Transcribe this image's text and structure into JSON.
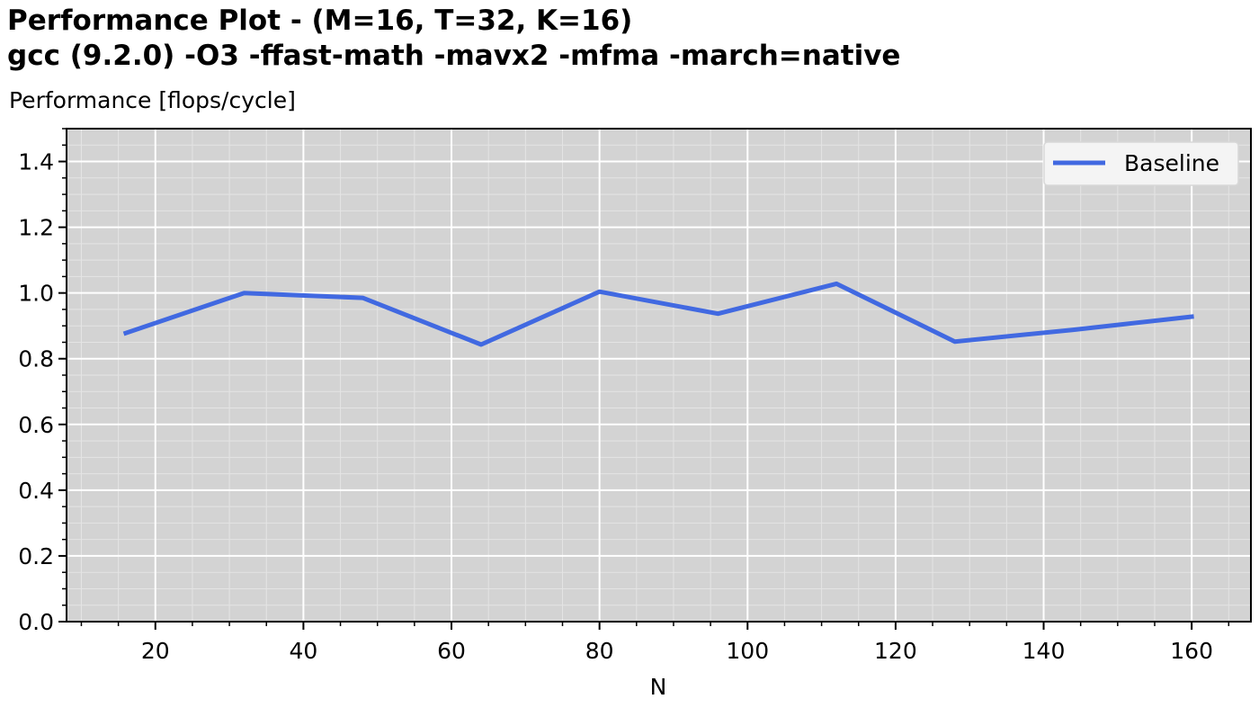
{
  "chart_data": {
    "type": "line",
    "title_lines": [
      "Performance Plot  -  (M=16, T=32, K=16)",
      "gcc (9.2.0) -O3 -ffast-math -mavx2 -mfma -march=native"
    ],
    "ylabel": "Performance [flops/cycle]",
    "xlabel": "N",
    "xlim": [
      8,
      168
    ],
    "ylim": [
      0,
      1.5
    ],
    "x_ticks": [
      20,
      40,
      60,
      80,
      100,
      120,
      140,
      160
    ],
    "x_tick_labels": [
      "20",
      "40",
      "60",
      "80",
      "100",
      "120",
      "140",
      "160"
    ],
    "y_ticks": [
      0,
      0.2,
      0.4,
      0.6,
      0.8,
      1.0,
      1.2,
      1.4
    ],
    "y_tick_labels": [
      "0.0",
      "0.2",
      "0.4",
      "0.6",
      "0.8",
      "1.0",
      "1.2",
      "1.4"
    ],
    "x_minor_step": 5,
    "y_minor_step": 0.05,
    "grid": true,
    "legend_position": "top-right",
    "colors": {
      "plot_background": "#d3d3d3",
      "major_grid": "#ffffff",
      "minor_grid": "#e4e4e4",
      "axis": "#000000"
    },
    "series": [
      {
        "name": "Baseline",
        "color": "#4169e1",
        "x": [
          16,
          32,
          48,
          64,
          80,
          96,
          112,
          128,
          144,
          160
        ],
        "y": [
          0.878,
          1.0,
          0.985,
          0.843,
          1.004,
          0.937,
          1.028,
          0.852,
          0.888,
          0.928
        ]
      }
    ]
  }
}
